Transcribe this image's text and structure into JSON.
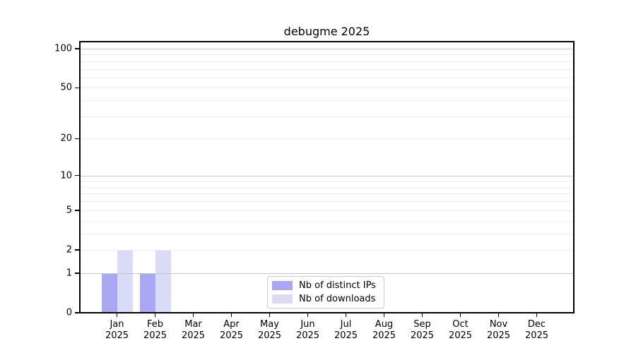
{
  "chart_data": {
    "type": "bar",
    "title": "debugme 2025",
    "x_labels": [
      {
        "month": "Jan",
        "year": "2025"
      },
      {
        "month": "Feb",
        "year": "2025"
      },
      {
        "month": "Mar",
        "year": "2025"
      },
      {
        "month": "Apr",
        "year": "2025"
      },
      {
        "month": "May",
        "year": "2025"
      },
      {
        "month": "Jun",
        "year": "2025"
      },
      {
        "month": "Jul",
        "year": "2025"
      },
      {
        "month": "Aug",
        "year": "2025"
      },
      {
        "month": "Sep",
        "year": "2025"
      },
      {
        "month": "Oct",
        "year": "2025"
      },
      {
        "month": "Nov",
        "year": "2025"
      },
      {
        "month": "Dec",
        "year": "2025"
      }
    ],
    "series": [
      {
        "name": "Nb of distinct IPs",
        "color": "#a8a8f5",
        "values": [
          1,
          1,
          0,
          0,
          0,
          0,
          0,
          0,
          0,
          0,
          0,
          0
        ]
      },
      {
        "name": "Nb of downloads",
        "color": "#dadaf9",
        "values": [
          2,
          2,
          0,
          0,
          0,
          0,
          0,
          0,
          0,
          0,
          0,
          0
        ]
      }
    ],
    "yscale": "log1p",
    "ylim": [
      0,
      113.3
    ],
    "yticks": [
      0,
      1,
      2,
      5,
      10,
      20,
      50,
      100
    ],
    "grid": {
      "major_values": [
        1,
        10,
        100
      ],
      "minor_values": [
        2,
        3,
        4,
        5,
        6,
        7,
        8,
        9,
        20,
        30,
        40,
        50,
        60,
        70,
        80,
        90
      ],
      "major_color": "#c6c6c6",
      "minor_color": "#ececec"
    },
    "legend": {
      "position": "lower center"
    },
    "colors": {
      "spine": "#000000",
      "background": "#ffffff",
      "text": "#000000"
    }
  }
}
